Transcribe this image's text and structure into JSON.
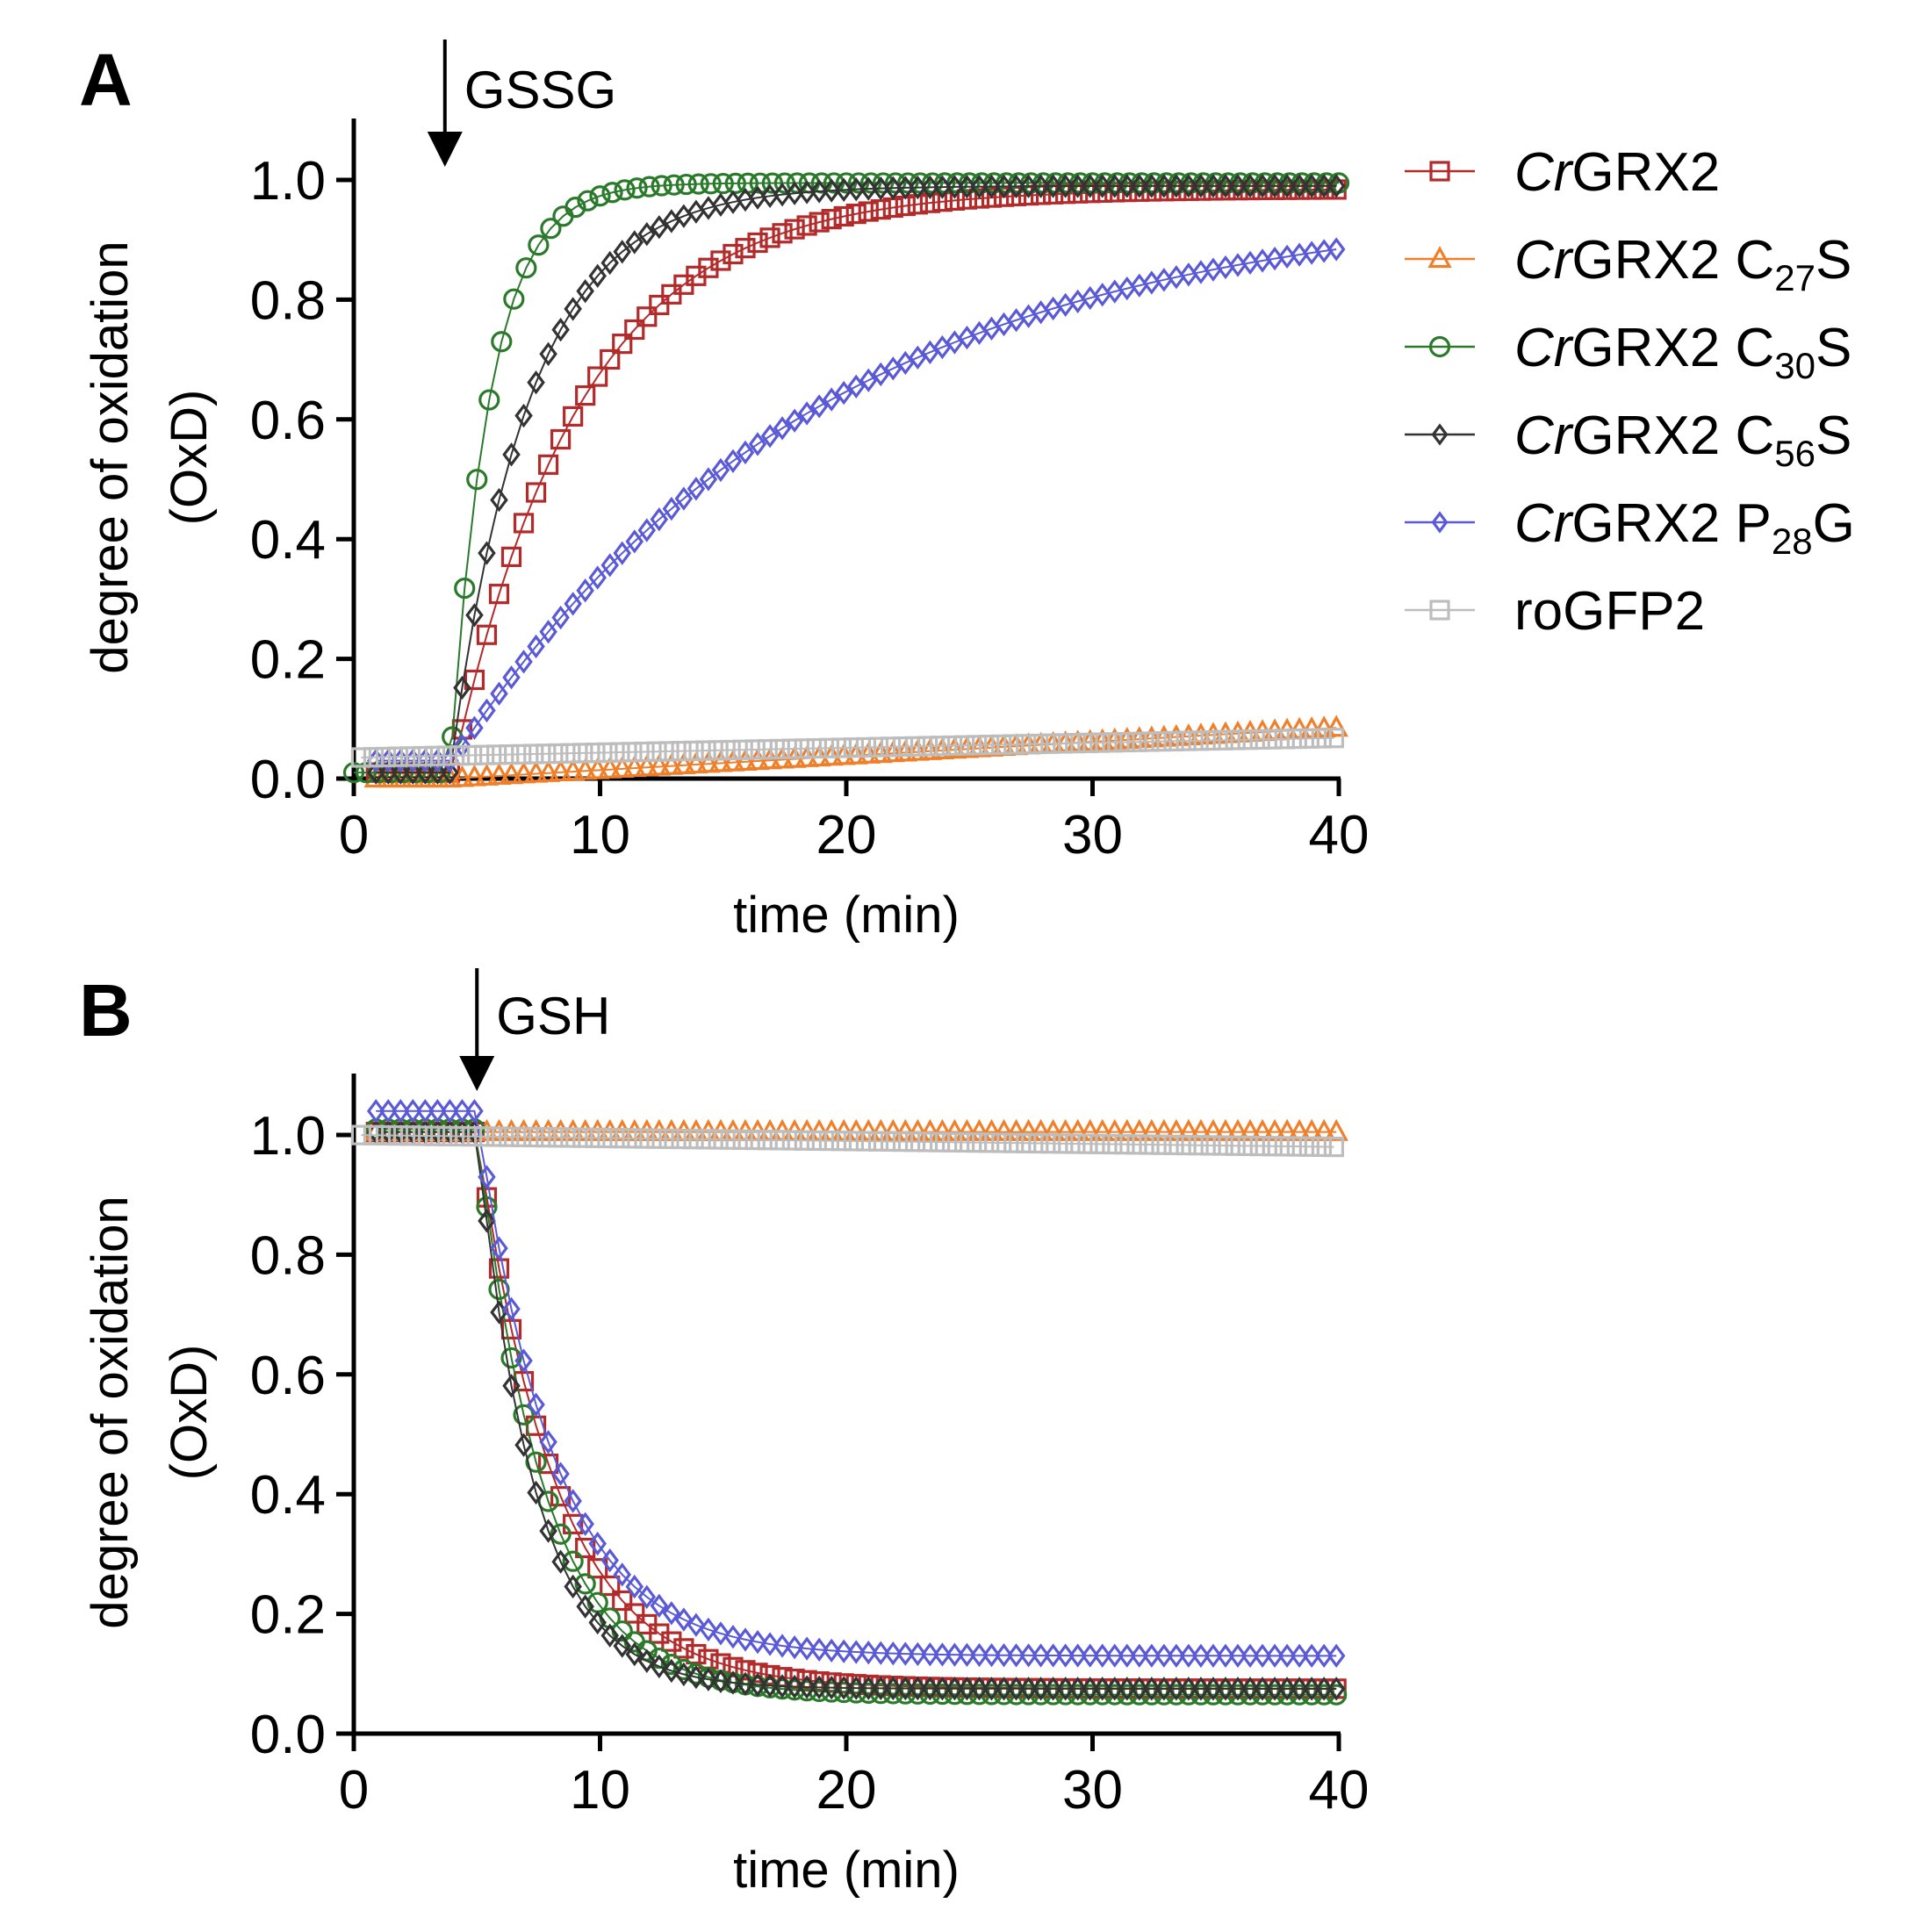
{
  "chart_data": [
    {
      "panel": "A",
      "type": "scatter",
      "xlabel": "time (min)",
      "ylabel": "degree of oxidation",
      "ylabel_unit": "(OxD)",
      "xlim": [
        0,
        40
      ],
      "ylim": [
        0,
        1.1
      ],
      "xticks": [
        0,
        10,
        20,
        30,
        40
      ],
      "yticks": [
        "0.0",
        "0.2",
        "0.4",
        "0.6",
        "0.8",
        "1.0"
      ],
      "annotation": {
        "label": "GSSG",
        "x": 3.7
      },
      "series": [
        {
          "name": "CrGRX2",
          "model": {
            "kind": "rise",
            "y0": 0.01,
            "t0": 4,
            "ymax": 0.985,
            "tau": 5.2
          }
        },
        {
          "name": "CrGRX2 C27S",
          "model": {
            "kind": "linear",
            "a": 0.0,
            "b": 0.085,
            "t0": 4,
            "x1": 40
          }
        },
        {
          "name": "CrGRX2 C30S",
          "model": {
            "kind": "rise",
            "y0": 0.01,
            "t0": 3.9,
            "ymax": 0.995,
            "tau": 1.6
          }
        },
        {
          "name": "CrGRX2 C56S",
          "model": {
            "kind": "rise",
            "y0": 0.01,
            "t0": 3.9,
            "ymax": 0.99,
            "tau": 3.2
          }
        },
        {
          "name": "CrGRX2 P28G",
          "model": {
            "kind": "rise",
            "y0": 0.03,
            "t0": 4,
            "ymax": 0.97,
            "tau": 15
          }
        },
        {
          "name": "roGFP2",
          "model": {
            "kind": "linear",
            "a": 0.035,
            "b": 0.068,
            "t0": 0,
            "x1": 40
          }
        }
      ]
    },
    {
      "panel": "B",
      "type": "scatter",
      "xlabel": "time (min)",
      "ylabel": "degree of oxidation",
      "ylabel_unit": "(OxD)",
      "xlim": [
        0,
        40
      ],
      "ylim": [
        0,
        1.1
      ],
      "xticks": [
        0,
        10,
        20,
        30,
        40
      ],
      "yticks": [
        "0.0",
        "0.2",
        "0.4",
        "0.6",
        "0.8",
        "1.0"
      ],
      "annotation": {
        "label": "GSH",
        "x": 5
      },
      "series": [
        {
          "name": "CrGRX2",
          "model": {
            "kind": "decay",
            "y0": 1.005,
            "t0": 5,
            "yinf": 0.075,
            "tau": 3.2
          }
        },
        {
          "name": "CrGRX2 C27S",
          "model": {
            "kind": "flat",
            "y": 1.005
          }
        },
        {
          "name": "CrGRX2 C30S",
          "model": {
            "kind": "decay",
            "y0": 1.01,
            "t0": 5,
            "yinf": 0.065,
            "tau": 2.7
          }
        },
        {
          "name": "CrGRX2 C56S",
          "model": {
            "kind": "decay",
            "y0": 1.005,
            "t0": 5,
            "yinf": 0.075,
            "tau": 2.3
          }
        },
        {
          "name": "CrGRX2 P28G",
          "model": {
            "kind": "decay",
            "y0": 1.04,
            "t0": 5,
            "yinf": 0.13,
            "tau": 3.1
          }
        },
        {
          "name": "roGFP2",
          "model": {
            "kind": "linear",
            "a": 1.0,
            "b": 0.98,
            "t0": 0,
            "x1": 40
          }
        }
      ]
    }
  ],
  "legend": [
    {
      "prefix": "Cr",
      "base": "GRX2",
      "mutation": "",
      "sub": "",
      "suffix": "",
      "color": "#b22a2a",
      "marker": "square"
    },
    {
      "prefix": "Cr",
      "base": "GRX2",
      "mutation": " C",
      "sub": "27",
      "suffix": "S",
      "color": "#f07f2a",
      "marker": "triangle"
    },
    {
      "prefix": "Cr",
      "base": "GRX2",
      "mutation": " C",
      "sub": "30",
      "suffix": "S",
      "color": "#2b7a2b",
      "marker": "circle"
    },
    {
      "prefix": "Cr",
      "base": "GRX2",
      "mutation": " C",
      "sub": "56",
      "suffix": "S",
      "color": "#333333",
      "marker": "diamond"
    },
    {
      "prefix": "Cr",
      "base": "GRX2",
      "mutation": " P",
      "sub": "28",
      "suffix": "G",
      "color": "#5a5ad6",
      "marker": "diamond"
    },
    {
      "prefix": "",
      "base": "roGFP2",
      "mutation": "",
      "sub": "",
      "suffix": "",
      "color": "#bdbdbd",
      "marker": "square"
    }
  ],
  "panels": {
    "a": "A",
    "b": "B"
  }
}
